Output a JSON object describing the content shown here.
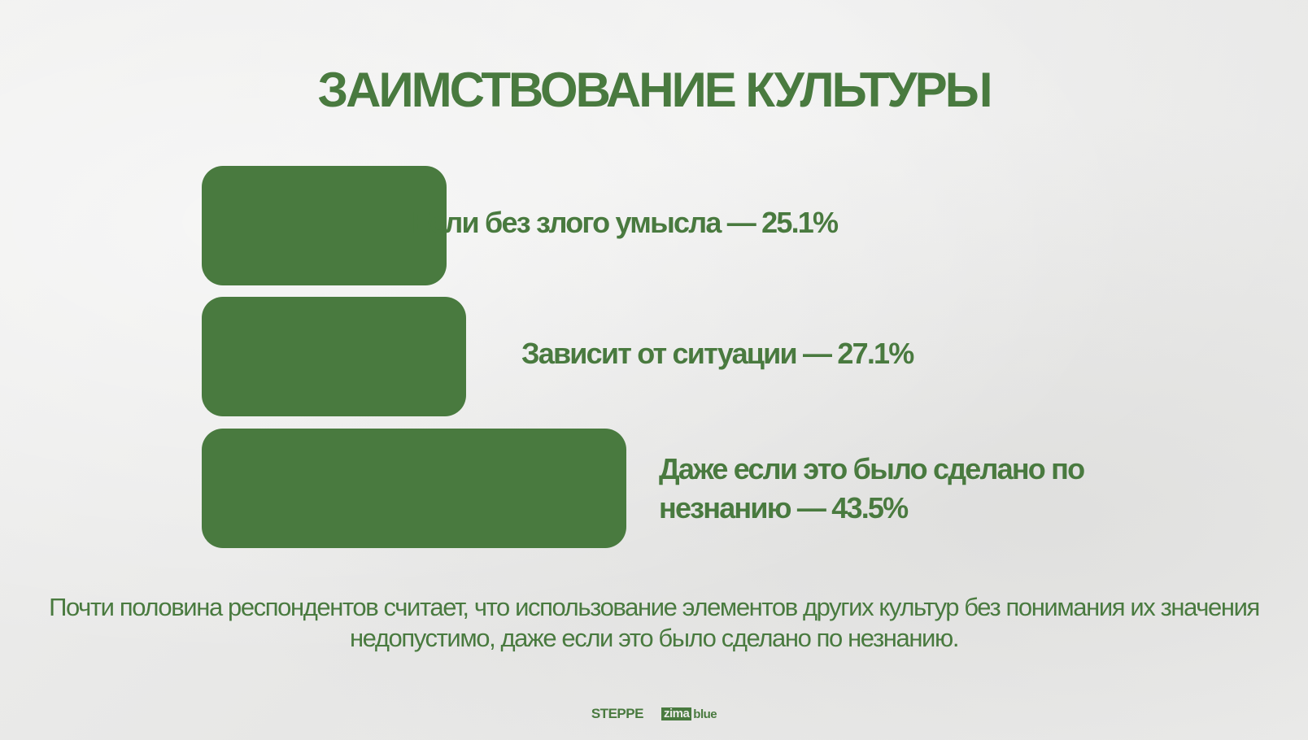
{
  "title": "ЗАИМСТВОВАНИЕ КУЛЬТУРЫ",
  "chart_data": {
    "type": "bar",
    "orientation": "horizontal",
    "categories": [
      "Если без злого умысла",
      "Зависит от ситуации",
      "Даже если это было сделано по незнанию"
    ],
    "values": [
      25.1,
      27.1,
      43.5
    ],
    "labels": [
      "Если без злого умысла — 25.1%",
      "Зависит от ситуации — 27.1%",
      "Даже если это было сделано по незнанию — 43.5%"
    ],
    "bar_color": "#497a3f"
  },
  "caption": "Почти половина респондентов считает, что использование элементов других культур без понимания их значения недопустимо, даже если это было сделано по незнанию.",
  "footer": {
    "steppe_logo": "STEPPE",
    "zima_logo_box": "zima",
    "zima_logo_text": "blue"
  },
  "colors": {
    "accent": "#497a3f",
    "background": "#ececeb"
  }
}
